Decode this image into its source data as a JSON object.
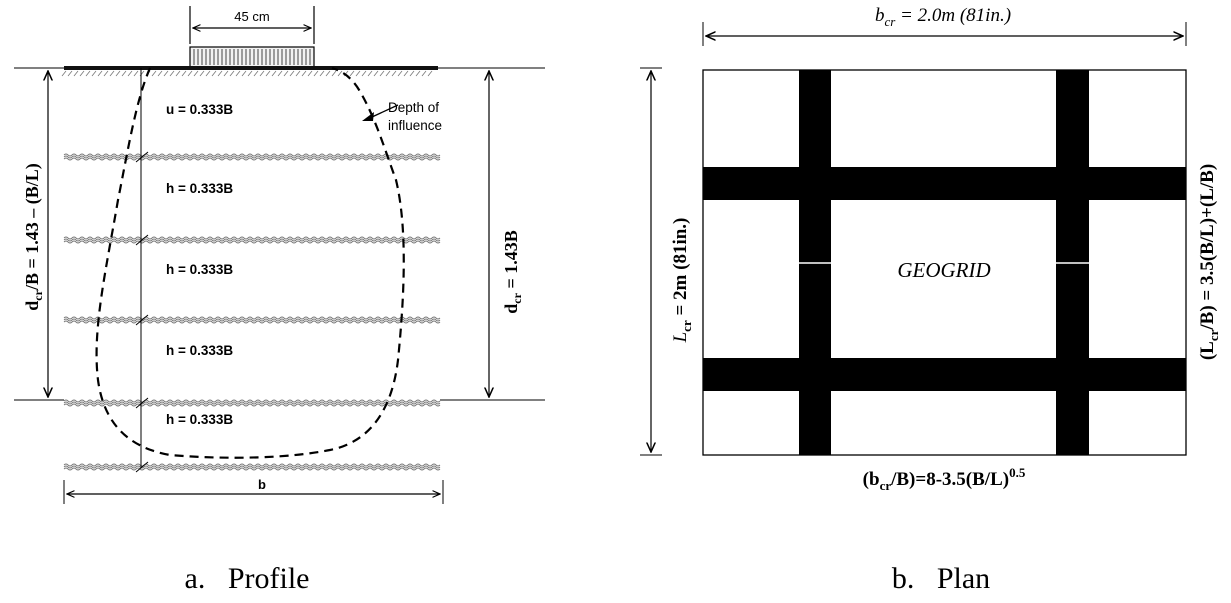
{
  "profile": {
    "footing_width_label": "45 cm",
    "u_label": "u = 0.333B",
    "h_labels": [
      "h = 0.333B",
      "h = 0.333B",
      "h = 0.333B",
      "h = 0.333B"
    ],
    "depth_of_influence_line1": "Depth of",
    "depth_of_influence_line2": "influence",
    "left_dim_main": "d",
    "left_dim_sub": "cr",
    "left_dim_rest": "/B = 1.43 – (B/L)",
    "right_dim_main": "d",
    "right_dim_sub": "cr",
    "right_dim_rest": " = 1.43B",
    "bottom_dim_label": "b",
    "caption": "a.   Profile"
  },
  "plan": {
    "top_dim_main": "b",
    "top_dim_sub": "cr",
    "top_dim_rest": " = 2.0m (81in.)",
    "left_dim_main": "L",
    "left_dim_sub": "cr",
    "left_dim_rest": " = 2m (81in.)",
    "right_dim_prefix": "(L",
    "right_dim_sub": "cr",
    "right_dim_rest": "/B) = 3.5(B/L)+(L/B)",
    "center_label": "GEOGRID",
    "bottom_formula_prefix": "(b",
    "bottom_formula_sub": "cr",
    "bottom_formula_mid": "/B)=8-3.5(B/L)",
    "bottom_formula_sup": "0.5",
    "caption": "b.   Plan"
  }
}
